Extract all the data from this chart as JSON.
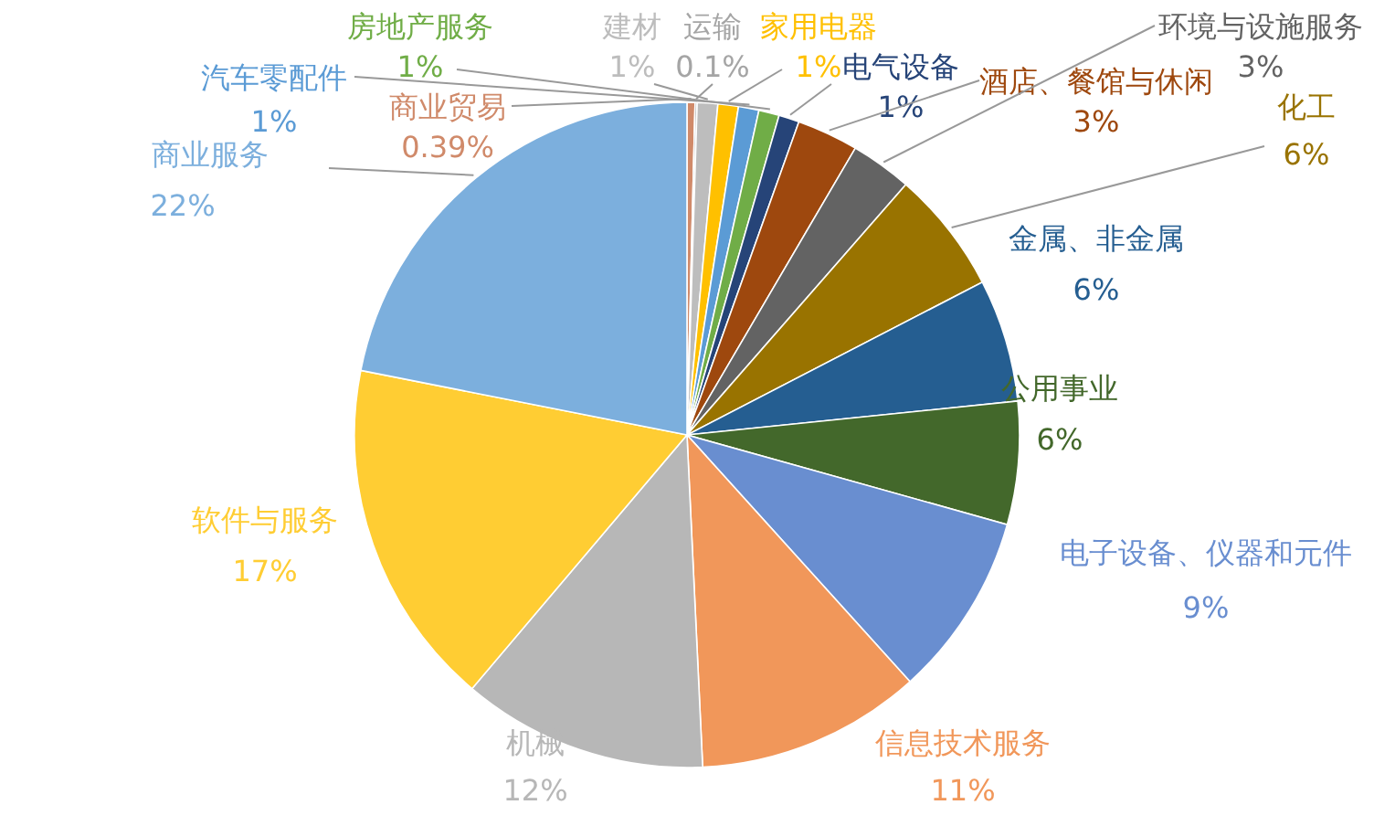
{
  "chart_data": {
    "type": "pie",
    "categories": [
      "商业贸易",
      "运输",
      "建材",
      "家用电器",
      "汽车零配件",
      "房地产服务",
      "电气设备",
      "酒店、餐馆与休闲",
      "环境与设施服务",
      "化工",
      "金属、非金属",
      "公用事业",
      "电子设备、仪器和元件",
      "信息技术服务",
      "机械",
      "软件与服务",
      "商业服务"
    ],
    "values": [
      0.39,
      0.1,
      1,
      1,
      1,
      1,
      1,
      3,
      3,
      6,
      6,
      6,
      9,
      11,
      12,
      17,
      22
    ],
    "colors": [
      "#d08a6a",
      "#a5a5a5",
      "#bdbdbd",
      "#ffc000",
      "#5b9bd5",
      "#70ad47",
      "#264478",
      "#9e480e",
      "#636363",
      "#997300",
      "#255e91",
      "#43682b",
      "#698ed0",
      "#f1975a",
      "#b7b7b7",
      "#ffcd33",
      "#7cafdd"
    ],
    "data_labels": true,
    "value_labels": [
      "0.39%",
      "0.1%",
      "1%",
      "1%",
      "1%",
      "1%",
      "1%",
      "3%",
      "3%",
      "6%",
      "6%",
      "6%",
      "9%",
      "11%",
      "12%",
      "17%",
      "22%"
    ]
  }
}
